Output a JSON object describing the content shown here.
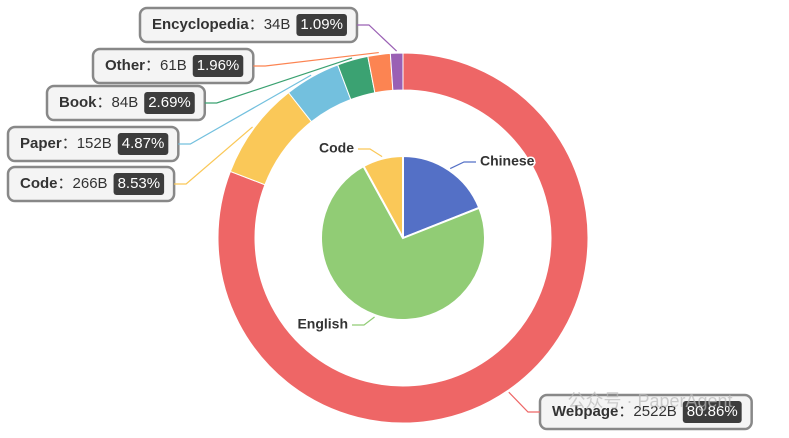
{
  "chart_data": [
    {
      "type": "donut",
      "categories": [
        "Webpage",
        "Code",
        "Paper",
        "Book",
        "Other",
        "Encyclopedia"
      ],
      "values": [
        2522,
        266,
        152,
        84,
        61,
        34
      ],
      "value_labels": [
        "2522B",
        "266B",
        "152B",
        "84B",
        "61B",
        "34B"
      ],
      "percents": [
        80.86,
        8.53,
        4.87,
        2.69,
        1.96,
        1.09
      ],
      "percent_labels": [
        "80.86%",
        "8.53%",
        "4.87%",
        "2.69%",
        "1.96%",
        "1.09%"
      ],
      "separator": "：",
      "colors": [
        "#ee6666",
        "#fac858",
        "#73c0de",
        "#3ba272",
        "#fc8452",
        "#9a60b4"
      ]
    },
    {
      "type": "pie",
      "categories": [
        "Chinese",
        "English",
        "Code"
      ],
      "values": [
        19,
        73,
        8
      ],
      "colors": [
        "#5470c6",
        "#91cc75",
        "#fac858"
      ]
    }
  ],
  "watermark": "公众号 · PaperAgent"
}
